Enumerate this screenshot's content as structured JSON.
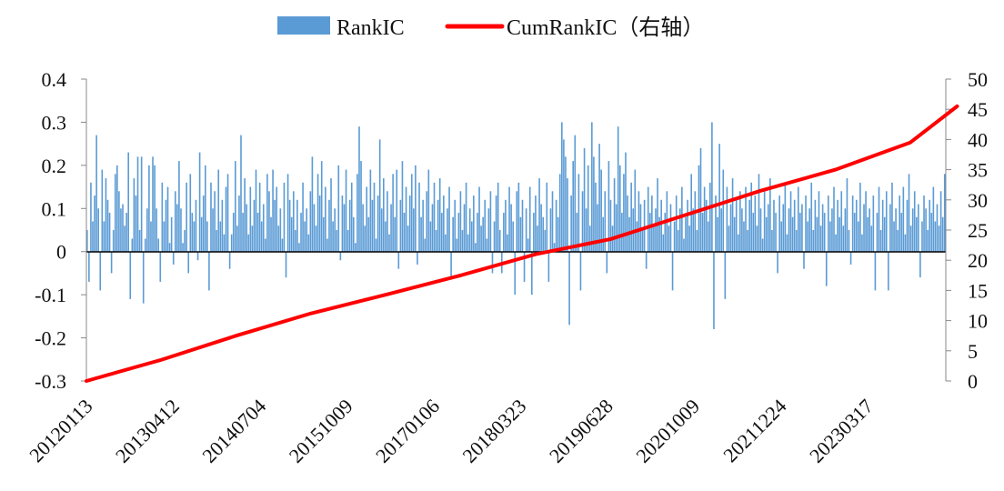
{
  "chart_data": {
    "type": "bar",
    "legend": {
      "placement": "top-center",
      "items": [
        {
          "label": "RankIC",
          "color": "#5b9bd5",
          "kind": "bar"
        },
        {
          "label": "CumRankIC（右轴）",
          "color": "#ff0000",
          "kind": "line"
        }
      ]
    },
    "x_tick_labels": [
      "20120113",
      "20130412",
      "20140704",
      "20151009",
      "20170106",
      "20180323",
      "20190628",
      "20201009",
      "20211224",
      "20230317"
    ],
    "y_left": {
      "ticks": [
        "-0.3",
        "-0.2",
        "-0.1",
        "0",
        "0.1",
        "0.2",
        "0.3",
        "0.4"
      ],
      "range": [
        -0.3,
        0.4
      ]
    },
    "y_right": {
      "ticks": [
        "0",
        "5",
        "10",
        "15",
        "20",
        "25",
        "30",
        "35",
        "40",
        "45",
        "50"
      ],
      "range": [
        0,
        50
      ]
    },
    "grid": false,
    "series": [
      {
        "name": "RankIC",
        "type": "bar",
        "axis": "left",
        "color": "#5b9bd5",
        "values": [
          0.05,
          -0.07,
          0.16,
          0.07,
          0.13,
          0.27,
          0.1,
          -0.09,
          0.19,
          0.07,
          0.17,
          0.12,
          0.09,
          -0.05,
          0.05,
          0.18,
          0.2,
          0.14,
          0.1,
          0.11,
          0.06,
          0.09,
          0.23,
          -0.11,
          0.03,
          0.17,
          0.13,
          0.22,
          0.05,
          0.22,
          -0.12,
          0.03,
          0.1,
          0.2,
          0.07,
          0.22,
          0.2,
          0.1,
          0.03,
          -0.07,
          0.16,
          0.07,
          0.12,
          0.15,
          0.02,
          0.08,
          -0.03,
          0.14,
          0.11,
          0.21,
          0.1,
          0.02,
          0.05,
          0.16,
          -0.05,
          0.18,
          0.09,
          0.07,
          0.12,
          -0.02,
          0.23,
          0.08,
          0.13,
          0.2,
          0.07,
          -0.09,
          0.16,
          0.1,
          0.14,
          0.05,
          0.19,
          0.07,
          0.12,
          0.04,
          0.15,
          0.18,
          -0.04,
          0.04,
          0.09,
          0.21,
          0.06,
          0.13,
          0.27,
          0.09,
          0.17,
          0.11,
          0.04,
          0.15,
          0.06,
          0.12,
          0.19,
          0.09,
          0.16,
          0.07,
          0.11,
          0.03,
          0.18,
          0.14,
          0.08,
          0.19,
          0.12,
          0.15,
          0.06,
          0.1,
          0.03,
          0.16,
          -0.06,
          0.18,
          0.12,
          0.08,
          0.14,
          0.05,
          0.12,
          0.02,
          0.09,
          0.16,
          0.07,
          0.1,
          0.04,
          0.14,
          0.22,
          0.11,
          0.06,
          0.18,
          0.13,
          0.21,
          0.08,
          0.15,
          0.03,
          0.12,
          0.17,
          0.07,
          0.1,
          0.05,
          0.2,
          -0.02,
          0.13,
          0.11,
          0.19,
          0.05,
          0.12,
          0.16,
          0.08,
          0.02,
          0.18,
          0.29,
          0.21,
          0.11,
          0.06,
          0.15,
          0.08,
          0.19,
          0.12,
          0.16,
          0.03,
          0.13,
          0.26,
          0.1,
          0.17,
          0.07,
          0.14,
          0.04,
          0.11,
          0.18,
          0.08,
          0.19,
          -0.04,
          0.12,
          0.21,
          0.09,
          0.15,
          0.06,
          0.13,
          0.18,
          0.1,
          0.2,
          -0.03,
          0.16,
          0.08,
          0.12,
          0.03,
          0.14,
          0.19,
          0.07,
          0.11,
          0.16,
          0.05,
          0.12,
          0.17,
          0.09,
          0.13,
          0.04,
          0.1,
          0.15,
          -0.06,
          0.08,
          0.12,
          0.03,
          0.09,
          0.14,
          0.05,
          0.11,
          0.16,
          0.04,
          0.1,
          0.07,
          0.13,
          0.02,
          0.09,
          0.15,
          0.06,
          0.08,
          0.12,
          0.03,
          0.1,
          0.14,
          -0.05,
          0.07,
          0.13,
          0.16,
          0.05,
          -0.05,
          0.09,
          0.12,
          0.04,
          0.15,
          0.11,
          0.07,
          -0.1,
          0.14,
          0.16,
          0.08,
          0.12,
          -0.07,
          0.1,
          0.03,
          0.15,
          -0.1,
          0.09,
          0.13,
          0.06,
          0.17,
          0.11,
          0.08,
          0.05,
          0.16,
          -0.07,
          0.1,
          0.14,
          0.02,
          0.12,
          0.08,
          0.18,
          0.3,
          0.26,
          0.22,
          0.17,
          -0.17,
          0.13,
          0.21,
          0.27,
          0.09,
          0.18,
          -0.09,
          0.14,
          0.24,
          0.1,
          0.2,
          0.06,
          0.3,
          0.22,
          0.16,
          0.11,
          0.25,
          0.19,
          0.08,
          0.14,
          -0.05,
          0.21,
          0.12,
          0.06,
          0.17,
          0.11,
          0.29,
          0.2,
          0.09,
          0.18,
          0.23,
          0.13,
          0.08,
          0.16,
          0.1,
          0.19,
          0.07,
          0.14,
          0.11,
          0.05,
          0.12,
          -0.04,
          0.15,
          0.09,
          0.13,
          0.06,
          0.1,
          0.17,
          0.08,
          0.12,
          0.04,
          0.09,
          0.14,
          0.06,
          0.11,
          -0.09,
          0.07,
          0.13,
          0.05,
          0.1,
          0.15,
          0.03,
          0.08,
          0.12,
          0.06,
          0.18,
          0.1,
          0.14,
          0.05,
          0.2,
          0.24,
          0.09,
          0.15,
          0.12,
          0.07,
          0.16,
          0.3,
          -0.18,
          0.13,
          0.08,
          0.25,
          0.1,
          0.19,
          -0.11,
          0.15,
          0.06,
          0.11,
          0.17,
          0.08,
          0.12,
          0.04,
          0.14,
          0.1,
          0.07,
          0.15,
          0.05,
          0.12,
          0.16,
          0.09,
          0.13,
          0.06,
          0.18,
          0.1,
          0.03,
          0.14,
          0.08,
          0.11,
          0.17,
          0.05,
          0.12,
          0.09,
          -0.05,
          0.13,
          0.07,
          0.11,
          0.16,
          0.04,
          0.1,
          0.14,
          0.08,
          0.12,
          0.05,
          0.15,
          0.09,
          0.11,
          -0.04,
          0.13,
          0.07,
          0.1,
          0.16,
          0.05,
          0.12,
          0.08,
          0.14,
          0.06,
          0.11,
          0.09,
          -0.08,
          0.13,
          0.07,
          0.1,
          0.15,
          0.04,
          0.12,
          0.08,
          0.14,
          0.06,
          0.1,
          0.17,
          0.05,
          -0.03,
          0.13,
          0.09,
          0.12,
          0.07,
          0.16,
          0.04,
          0.11,
          0.14,
          0.08,
          0.1,
          0.06,
          0.13,
          -0.09,
          0.09,
          0.15,
          0.05,
          0.12,
          0.08,
          0.14,
          -0.09,
          0.11,
          0.16,
          0.07,
          0.1,
          0.05,
          0.13,
          0.09,
          0.15,
          0.04,
          0.12,
          0.18,
          0.06,
          0.1,
          0.14,
          0.08,
          0.11,
          -0.06,
          0.07,
          0.13,
          0.1,
          0.05,
          0.12,
          0.09,
          0.15,
          0.07,
          0.11,
          0.06,
          0.14,
          0.08,
          0.18
        ]
      },
      {
        "name": "CumRankIC（右轴）",
        "type": "line",
        "axis": "right",
        "color": "#ff0000",
        "x_index": [
          0,
          40,
          80,
          120,
          160,
          200,
          240,
          280,
          320,
          360,
          400,
          440,
          465
        ],
        "values": [
          0,
          3.5,
          7.5,
          11.2,
          14.3,
          17.5,
          21.0,
          23.5,
          27.5,
          31.5,
          35.0,
          39.5,
          45.5
        ]
      }
    ]
  }
}
